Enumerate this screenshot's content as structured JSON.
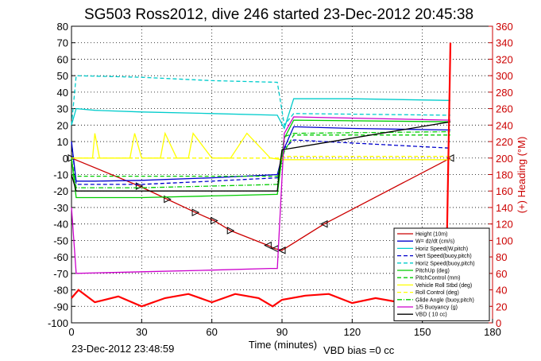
{
  "chart_data": {
    "type": "line",
    "title": "SG503 Ross2012, dive 246 started 23-Dec-2012 20:45:38",
    "xlabel": "Time (minutes)",
    "ylabel_right": "(+) Heading (°M)",
    "xlim": [
      0,
      180
    ],
    "ylim_left": [
      -100,
      80
    ],
    "ylim_right": [
      0,
      360
    ],
    "x_ticks": [
      0,
      30,
      60,
      90,
      120,
      150,
      180
    ],
    "y_ticks_left": [
      -100,
      -90,
      -80,
      -70,
      -60,
      -50,
      -40,
      -30,
      -20,
      -10,
      0,
      10,
      20,
      30,
      40,
      50,
      60,
      70,
      80
    ],
    "y_ticks_right": [
      0,
      20,
      40,
      60,
      80,
      100,
      120,
      140,
      160,
      180,
      200,
      220,
      240,
      260,
      280,
      300,
      320,
      340,
      360
    ],
    "grid": true,
    "legend_placement": "bottom-right",
    "footer_left": "23-Dec-2012 23:48:59",
    "footer_right": "VBD bias =0 cc",
    "series": [
      {
        "name": "Height (10m)",
        "color": "#cc0000",
        "style": "solid",
        "x": [
          0,
          29,
          41,
          53,
          61,
          68,
          84,
          87,
          90,
          108,
          162
        ],
        "y": [
          0,
          -17,
          -25,
          -33,
          -38,
          -44,
          -53,
          -55,
          -56,
          -40,
          0
        ]
      },
      {
        "name": "W= dz/dt (cm/s)",
        "color": "#0000cc",
        "style": "solid",
        "x": [
          0,
          2,
          10,
          30,
          60,
          88,
          91,
          95,
          120,
          162
        ],
        "y": [
          10,
          -14,
          -14,
          -13.5,
          -12,
          -10,
          6,
          19,
          18,
          17
        ]
      },
      {
        "name": "Horiz Speed(W,pitch)",
        "color": "#00cccc",
        "style": "solid",
        "x": [
          0,
          2,
          10,
          30,
          60,
          88,
          91,
          95,
          120,
          162
        ],
        "y": [
          20,
          30,
          29,
          28,
          27,
          26,
          18,
          36,
          36,
          35
        ]
      },
      {
        "name": "Vert Speed(buoy,pitch)",
        "color": "#0000cc",
        "style": "dashed",
        "x": [
          0,
          2,
          30,
          60,
          88,
          91,
          95,
          162
        ],
        "y": [
          10,
          -16,
          -16,
          -14,
          -12,
          6,
          11,
          6
        ]
      },
      {
        "name": "Horiz Speed(buoy,pitch)",
        "color": "#00cccc",
        "style": "dashed",
        "x": [
          0,
          2,
          30,
          60,
          88,
          91,
          95,
          162
        ],
        "y": [
          20,
          50,
          49,
          47,
          46,
          20,
          27,
          26
        ]
      },
      {
        "name": "PitchUp (deg)",
        "color": "#00cc00",
        "style": "solid",
        "x": [
          0,
          2,
          30,
          60,
          88,
          91,
          95,
          162
        ],
        "y": [
          0,
          -24,
          -24,
          -23,
          -22,
          12,
          23,
          22
        ]
      },
      {
        "name": "PitchControl (mm)",
        "color": "#00cc00",
        "style": "dashed",
        "x": [
          0,
          2,
          30,
          60,
          88,
          91,
          95,
          162
        ],
        "y": [
          -10,
          -11,
          -11,
          -11,
          -11,
          4,
          14,
          14
        ]
      },
      {
        "name": "Vehicle Roll Stbd (deg)",
        "color": "#ffff00",
        "style": "solid",
        "x": [
          0,
          9,
          10,
          12,
          25,
          27,
          30,
          38,
          40,
          45,
          50,
          52,
          60,
          68,
          75,
          85,
          90,
          162
        ],
        "y": [
          0,
          0,
          15,
          0,
          0,
          15,
          0,
          0,
          15,
          0,
          0,
          15,
          0,
          0,
          15,
          0,
          -1,
          -1
        ]
      },
      {
        "name": "Roll Control (deg)",
        "color": "#ffff00",
        "style": "dashed",
        "x": [
          0,
          90,
          91,
          162
        ],
        "y": [
          0,
          0,
          1,
          1
        ]
      },
      {
        "name": "Glide Angle (buoy,pitch)",
        "color": "#00cc00",
        "style": "dashdot",
        "x": [
          0,
          2,
          30,
          60,
          88,
          91,
          95,
          162
        ],
        "y": [
          0,
          -18,
          -18,
          -17,
          -16,
          13,
          15,
          16
        ]
      },
      {
        "name": "1/5 Buoyancy (g)",
        "color": "#cc00cc",
        "style": "solid",
        "x": [
          0,
          2,
          30,
          60,
          85,
          88,
          91,
          95,
          162
        ],
        "y": [
          -30,
          -70,
          -69,
          -68,
          -67,
          -67,
          15,
          25,
          23
        ]
      },
      {
        "name": "VBD ( 10 cc)",
        "color": "#000000",
        "style": "solid",
        "x": [
          0,
          2,
          88,
          89,
          90,
          162
        ],
        "y": [
          -10,
          -20,
          -20,
          -5,
          5,
          22
        ]
      },
      {
        "name": "Heading",
        "color": "#ff0000",
        "style": "solid",
        "axis": "right",
        "x": [
          0,
          3,
          10,
          20,
          30,
          40,
          50,
          60,
          70,
          80,
          86,
          90,
          100,
          110,
          120,
          130,
          140,
          150,
          160,
          162
        ],
        "y": [
          30,
          40,
          25,
          32,
          20,
          30,
          35,
          25,
          35,
          30,
          20,
          28,
          33,
          35,
          24,
          30,
          25,
          24,
          22,
          340
        ]
      }
    ]
  }
}
